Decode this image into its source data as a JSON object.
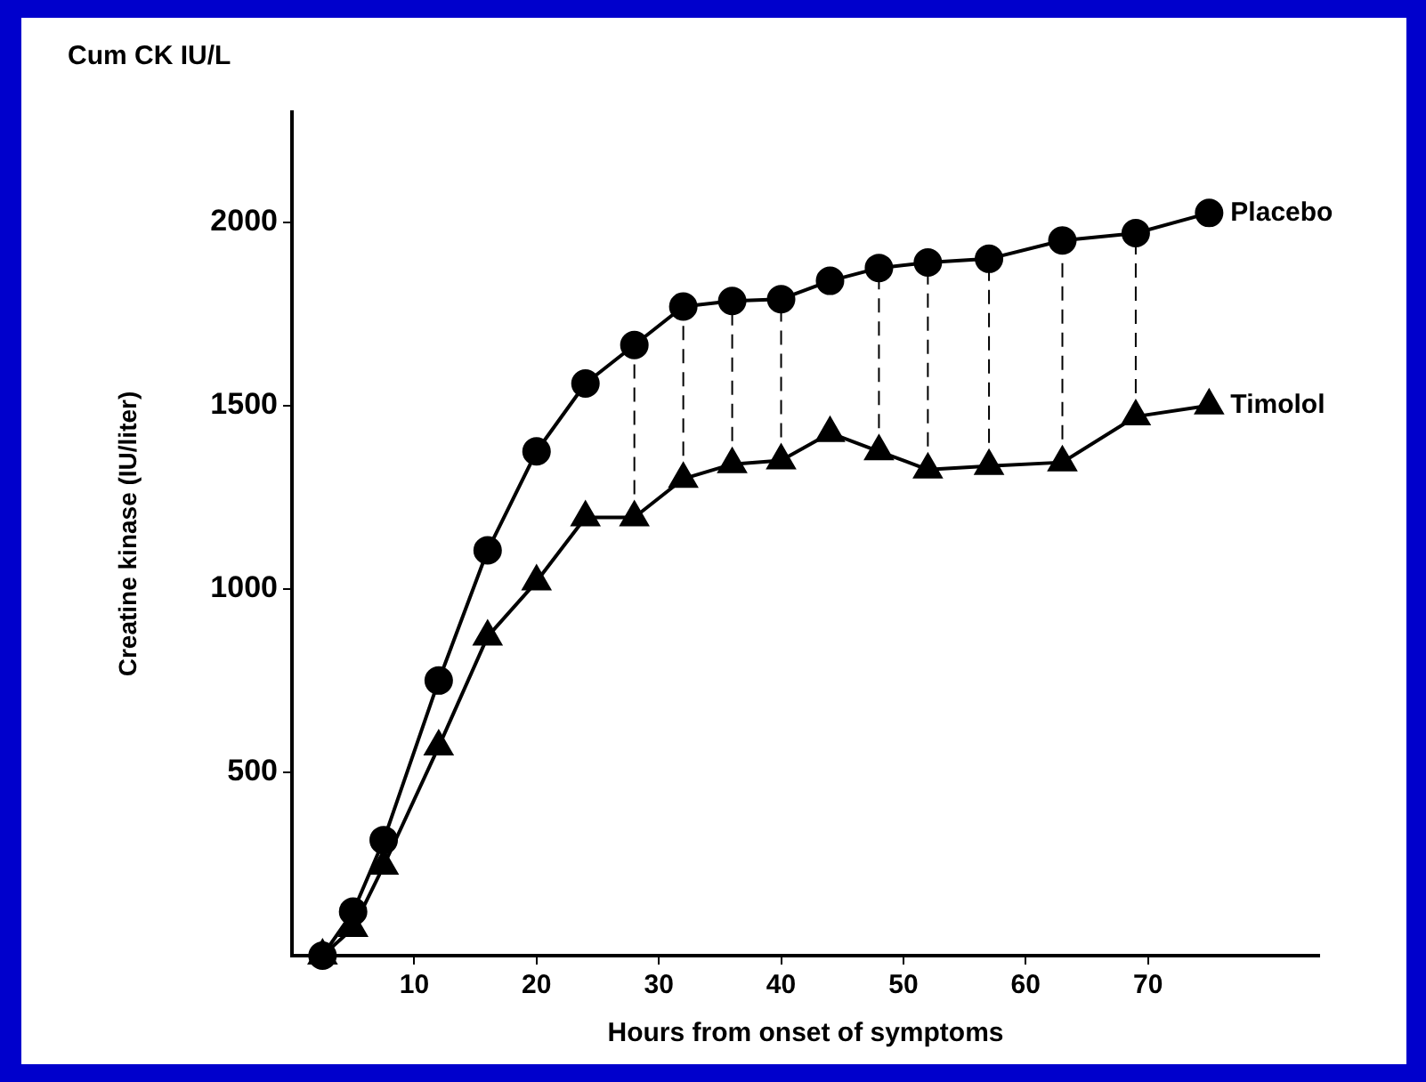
{
  "chart_data": {
    "type": "line",
    "xlabel": "Hours from onset of symptoms",
    "ylabel": "Creatine kinase (IU/liter)",
    "annotations": [
      "Cum CK IU/L"
    ],
    "x": [
      2.5,
      5,
      7.5,
      12,
      16,
      20,
      24,
      28,
      32,
      36,
      40,
      44,
      48,
      52,
      57,
      63,
      69,
      75
    ],
    "series": [
      {
        "name": "Placebo",
        "color": "#000000",
        "marker": "circle",
        "values": [
          0,
          120,
          315,
          750,
          1105,
          1375,
          1560,
          1665,
          1770,
          1785,
          1790,
          1840,
          1875,
          1890,
          1900,
          1950,
          1970,
          2025
        ]
      },
      {
        "name": "Timolol",
        "color": "#000000",
        "marker": "triangle",
        "values": [
          0,
          75,
          245,
          570,
          870,
          1020,
          1195,
          1195,
          1300,
          1340,
          1350,
          1425,
          1375,
          1325,
          1335,
          1345,
          1470,
          1500
        ]
      },
      {
        "type": "line",
        "color": "#000000",
        "marker": "none",
        "line_style": "dashed",
        "x": [
          28,
          28
        ],
        "values": [
          1195,
          1665
        ]
      },
      {
        "type": "line",
        "color": "#000000",
        "marker": "none",
        "line_style": "dashed",
        "x": [
          32,
          32
        ],
        "values": [
          1300,
          1770
        ]
      },
      {
        "type": "line",
        "color": "#000000",
        "marker": "none",
        "line_style": "dashed",
        "x": [
          36,
          36
        ],
        "values": [
          1340,
          1785
        ]
      },
      {
        "type": "line",
        "color": "#000000",
        "marker": "none",
        "line_style": "dashed",
        "x": [
          40,
          40
        ],
        "values": [
          1350,
          1790
        ]
      },
      {
        "type": "line",
        "color": "#000000",
        "marker": "none",
        "line_style": "dashed",
        "x": [
          48,
          48
        ],
        "values": [
          1375,
          1875
        ]
      },
      {
        "type": "line",
        "color": "#000000",
        "marker": "none",
        "line_style": "dashed",
        "x": [
          52,
          52
        ],
        "values": [
          1325,
          1890
        ]
      },
      {
        "type": "line",
        "color": "#000000",
        "marker": "none",
        "line_style": "dashed",
        "x": [
          57,
          57
        ],
        "values": [
          1335,
          1900
        ]
      },
      {
        "type": "line",
        "color": "#000000",
        "marker": "none",
        "line_style": "dashed",
        "x": [
          63,
          63
        ],
        "values": [
          1345,
          1950
        ]
      },
      {
        "type": "line",
        "color": "#000000",
        "marker": "none",
        "line_style": "dashed",
        "x": [
          69,
          69
        ],
        "values": [
          1470,
          1970
        ]
      }
    ],
    "xlim": [
      0,
      84
    ],
    "xticks": [
      10,
      20,
      30,
      40,
      50,
      60,
      70
    ],
    "ylim": [
      0,
      2300
    ],
    "yticks": [
      500,
      1000,
      1500,
      2000
    ],
    "grid": false,
    "legend": false,
    "line_style": "solid"
  }
}
